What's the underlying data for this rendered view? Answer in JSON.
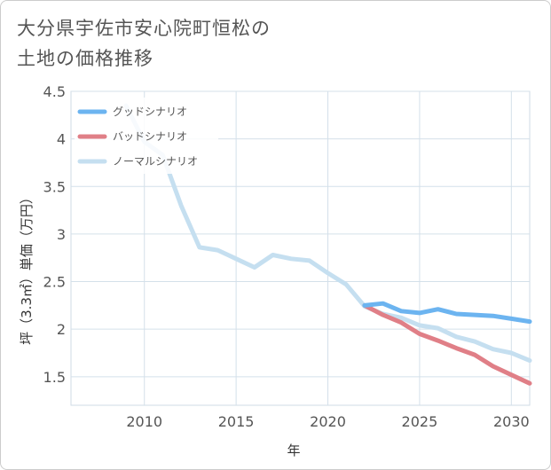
{
  "title": {
    "line1": "大分県宇佐市安心院町恒松の",
    "line2": "土地の価格推移"
  },
  "chart_data": {
    "type": "line",
    "xlabel": "年",
    "ylabel": "坪（3.3㎡）単価（万円）",
    "xlim": [
      2006,
      2031
    ],
    "ylim": [
      1.2,
      4.5
    ],
    "x_ticks": [
      2010,
      2015,
      2020,
      2025,
      2030
    ],
    "y_ticks": [
      1.5,
      2,
      2.5,
      3,
      3.5,
      4,
      4.5
    ],
    "grid": true,
    "legend_position": "top-left",
    "series": [
      {
        "name": "グッドシナリオ",
        "color": "#6cb4f0",
        "x": [
          2022,
          2023,
          2024,
          2025,
          2026,
          2027,
          2028,
          2029,
          2030,
          2031
        ],
        "values": [
          2.25,
          2.27,
          2.19,
          2.17,
          2.21,
          2.16,
          2.15,
          2.14,
          2.11,
          2.08
        ]
      },
      {
        "name": "バッドシナリオ",
        "color": "#e07f87",
        "x": [
          2022,
          2023,
          2024,
          2025,
          2026,
          2027,
          2028,
          2029,
          2030,
          2031
        ],
        "values": [
          2.25,
          2.15,
          2.07,
          1.95,
          1.88,
          1.8,
          1.73,
          1.61,
          1.52,
          1.43
        ]
      },
      {
        "name": "ノーマルシナリオ",
        "color": "#c5dff0",
        "x": [
          2009,
          2010,
          2011,
          2012,
          2013,
          2014,
          2015,
          2016,
          2017,
          2018,
          2019,
          2020,
          2021,
          2022,
          2023,
          2024,
          2025,
          2026,
          2027,
          2028,
          2029,
          2030,
          2031
        ],
        "values": [
          4.35,
          3.97,
          3.83,
          3.3,
          2.86,
          2.83,
          2.74,
          2.65,
          2.78,
          2.74,
          2.72,
          2.59,
          2.47,
          2.24,
          2.16,
          2.12,
          2.04,
          2.01,
          1.92,
          1.87,
          1.79,
          1.75,
          1.67
        ]
      }
    ]
  }
}
